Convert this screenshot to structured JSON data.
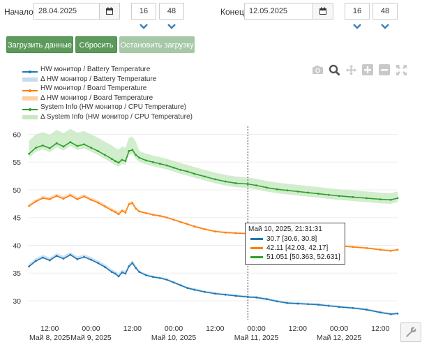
{
  "controls": {
    "start_label": "Начало",
    "start_date": "28.04.2025",
    "start_hour": "16",
    "start_minute": "48",
    "end_label": "Конец",
    "end_date": "12.05.2025",
    "end_hour": "16",
    "end_minute": "48",
    "colon": ":"
  },
  "buttons": {
    "load": "Загрузить данные",
    "reset": "Сбросить",
    "stop": "Остановить загрузку"
  },
  "legend": [
    {
      "label": "HW монитор / Battery Temperature",
      "color": "#1f77b4",
      "kind": "line"
    },
    {
      "label": "Δ HW монитор / Battery Temperature",
      "color": "#c6dbef",
      "kind": "band"
    },
    {
      "label": "HW монитор / Board Temperature",
      "color": "#ff7f0e",
      "kind": "line"
    },
    {
      "label": "Δ HW монитор / Board Temperature",
      "color": "#fdd0a2",
      "kind": "band"
    },
    {
      "label": "System Info (HW монитор / CPU Temperature)",
      "color": "#2ca02c",
      "kind": "line"
    },
    {
      "label": "Δ System Info (HW монитор / CPU Temperature)",
      "color": "#c7e9c0",
      "kind": "band"
    }
  ],
  "modebar_icons": [
    "camera-icon",
    "zoom-icon",
    "pan-icon",
    "zoom-in-icon",
    "zoom-out-icon",
    "autoscale-icon"
  ],
  "tooltip": {
    "title": "Май 10, 2025, 21:31:31",
    "rows": [
      {
        "text": "30.7 [30.6, 30.8]",
        "color": "#1f77b4"
      },
      {
        "text": "42.11 [42.03, 42.17]",
        "color": "#ff7f0e"
      },
      {
        "text": "51.051 [50.363, 52.631]",
        "color": "#2ca02c"
      }
    ]
  },
  "chart_data": {
    "type": "line",
    "x_ticks": [
      {
        "time": "12:00",
        "date": "Май 8, 2025"
      },
      {
        "time": "00:00",
        "date": "Май 9, 2025"
      },
      {
        "time": "12:00",
        "date": ""
      },
      {
        "time": "00:00",
        "date": "Май 10, 2025"
      },
      {
        "time": "12:00",
        "date": ""
      },
      {
        "time": "00:00",
        "date": "Май 11, 2025"
      },
      {
        "time": "12:00",
        "date": ""
      },
      {
        "time": "00:00",
        "date": "Май 12, 2025"
      },
      {
        "time": "12:00",
        "date": ""
      }
    ],
    "x_range": [
      "2025-05-08 05:40",
      "2025-05-12 17:00"
    ],
    "y_ticks": [
      30,
      35,
      40,
      45,
      50,
      55,
      60
    ],
    "ylim": [
      26.6,
      62.2
    ],
    "hover_x": "2025-05-10 21:31:31",
    "series": [
      {
        "name": "HW монитор / Battery Temperature",
        "color": "#1f77b4",
        "x": [
          "2025-05-08 06:00",
          "2025-05-08 08:00",
          "2025-05-08 10:00",
          "2025-05-08 12:00",
          "2025-05-08 14:00",
          "2025-05-08 16:00",
          "2025-05-08 18:00",
          "2025-05-08 20:00",
          "2025-05-08 22:00",
          "2025-05-09 00:00",
          "2025-05-09 02:00",
          "2025-05-09 04:00",
          "2025-05-09 06:00",
          "2025-05-09 07:00",
          "2025-05-09 08:00",
          "2025-05-09 09:00",
          "2025-05-09 10:00",
          "2025-05-09 11:00",
          "2025-05-09 12:00",
          "2025-05-09 13:00",
          "2025-05-09 14:00",
          "2025-05-09 16:00",
          "2025-05-09 18:00",
          "2025-05-09 20:00",
          "2025-05-09 22:00",
          "2025-05-10 00:00",
          "2025-05-10 02:00",
          "2025-05-10 04:00",
          "2025-05-10 06:00",
          "2025-05-10 09:00",
          "2025-05-10 12:00",
          "2025-05-10 15:00",
          "2025-05-10 18:00",
          "2025-05-10 21:31",
          "2025-05-11 00:00",
          "2025-05-11 03:00",
          "2025-05-11 06:00",
          "2025-05-11 09:00",
          "2025-05-11 12:00",
          "2025-05-11 15:00",
          "2025-05-11 18:00",
          "2025-05-11 21:00",
          "2025-05-12 00:00",
          "2025-05-12 04:00",
          "2025-05-12 08:00",
          "2025-05-12 12:00",
          "2025-05-12 15:00",
          "2025-05-12 17:00"
        ],
        "values": [
          36.2,
          37.2,
          37.8,
          37.3,
          38.1,
          37.6,
          38.3,
          37.5,
          37.9,
          37.4,
          36.8,
          36.1,
          35.2,
          34.9,
          34.4,
          35.1,
          34.9,
          36.2,
          36.8,
          35.9,
          35.2,
          34.6,
          34.3,
          34.1,
          33.8,
          33.3,
          32.8,
          32.3,
          32.0,
          31.6,
          31.3,
          31.1,
          30.9,
          30.7,
          30.6,
          30.3,
          29.9,
          29.6,
          29.5,
          29.4,
          29.3,
          29.1,
          28.9,
          28.7,
          28.4,
          27.9,
          27.6,
          27.7
        ]
      },
      {
        "name": "HW монитор / Board Temperature",
        "color": "#ff7f0e",
        "x": [
          "2025-05-08 06:00",
          "2025-05-08 08:00",
          "2025-05-08 10:00",
          "2025-05-08 12:00",
          "2025-05-08 14:00",
          "2025-05-08 16:00",
          "2025-05-08 18:00",
          "2025-05-08 20:00",
          "2025-05-08 22:00",
          "2025-05-09 00:00",
          "2025-05-09 02:00",
          "2025-05-09 04:00",
          "2025-05-09 06:00",
          "2025-05-09 07:00",
          "2025-05-09 08:00",
          "2025-05-09 09:00",
          "2025-05-09 10:00",
          "2025-05-09 11:00",
          "2025-05-09 12:00",
          "2025-05-09 13:00",
          "2025-05-09 14:00",
          "2025-05-09 16:00",
          "2025-05-09 18:00",
          "2025-05-09 20:00",
          "2025-05-09 22:00",
          "2025-05-10 00:00",
          "2025-05-10 02:00",
          "2025-05-10 04:00",
          "2025-05-10 06:00",
          "2025-05-10 09:00",
          "2025-05-10 12:00",
          "2025-05-10 15:00",
          "2025-05-10 18:00",
          "2025-05-10 21:31",
          "2025-05-11 00:00",
          "2025-05-11 03:00",
          "2025-05-11 06:00",
          "2025-05-11 09:00",
          "2025-05-11 12:00",
          "2025-05-11 15:00",
          "2025-05-11 18:00",
          "2025-05-11 21:00",
          "2025-05-12 00:00",
          "2025-05-12 04:00",
          "2025-05-12 08:00",
          "2025-05-12 12:00",
          "2025-05-12 15:00",
          "2025-05-12 17:00"
        ],
        "values": [
          47.1,
          47.9,
          48.5,
          48.3,
          48.9,
          48.4,
          49.0,
          48.3,
          48.8,
          48.2,
          47.7,
          47.0,
          46.3,
          46.0,
          45.6,
          46.2,
          45.9,
          47.4,
          47.6,
          46.6,
          46.1,
          45.8,
          45.5,
          45.3,
          45.0,
          44.6,
          44.2,
          43.8,
          43.4,
          42.9,
          42.5,
          42.3,
          42.2,
          42.11,
          42.0,
          41.6,
          41.2,
          40.9,
          40.6,
          40.4,
          40.3,
          40.1,
          39.9,
          39.7,
          39.5,
          39.2,
          39.0,
          39.2
        ]
      },
      {
        "name": "System Info (HW монитор / CPU Temperature)",
        "color": "#2ca02c",
        "x": [
          "2025-05-08 06:00",
          "2025-05-08 08:00",
          "2025-05-08 10:00",
          "2025-05-08 12:00",
          "2025-05-08 14:00",
          "2025-05-08 16:00",
          "2025-05-08 18:00",
          "2025-05-08 20:00",
          "2025-05-08 22:00",
          "2025-05-09 00:00",
          "2025-05-09 02:00",
          "2025-05-09 04:00",
          "2025-05-09 06:00",
          "2025-05-09 07:00",
          "2025-05-09 08:00",
          "2025-05-09 09:00",
          "2025-05-09 10:00",
          "2025-05-09 11:00",
          "2025-05-09 12:00",
          "2025-05-09 13:00",
          "2025-05-09 14:00",
          "2025-05-09 16:00",
          "2025-05-09 18:00",
          "2025-05-09 20:00",
          "2025-05-09 22:00",
          "2025-05-10 00:00",
          "2025-05-10 02:00",
          "2025-05-10 04:00",
          "2025-05-10 06:00",
          "2025-05-10 09:00",
          "2025-05-10 12:00",
          "2025-05-10 15:00",
          "2025-05-10 18:00",
          "2025-05-10 21:31",
          "2025-05-11 00:00",
          "2025-05-11 03:00",
          "2025-05-11 06:00",
          "2025-05-11 09:00",
          "2025-05-11 12:00",
          "2025-05-11 15:00",
          "2025-05-11 18:00",
          "2025-05-11 21:00",
          "2025-05-12 00:00",
          "2025-05-12 04:00",
          "2025-05-12 08:00",
          "2025-05-12 12:00",
          "2025-05-12 15:00",
          "2025-05-12 17:00"
        ],
        "values": [
          56.5,
          57.6,
          58.0,
          57.5,
          58.4,
          57.8,
          58.6,
          57.9,
          58.2,
          57.6,
          57.0,
          56.3,
          55.6,
          55.2,
          54.9,
          55.4,
          55.2,
          57.0,
          57.2,
          56.3,
          55.8,
          55.3,
          55.0,
          54.7,
          54.4,
          54.0,
          53.6,
          53.3,
          52.9,
          52.4,
          51.9,
          51.5,
          51.2,
          51.05,
          50.8,
          50.4,
          50.1,
          49.9,
          49.7,
          49.5,
          49.3,
          49.1,
          48.9,
          48.7,
          48.5,
          48.3,
          48.2,
          48.5
        ]
      }
    ]
  }
}
